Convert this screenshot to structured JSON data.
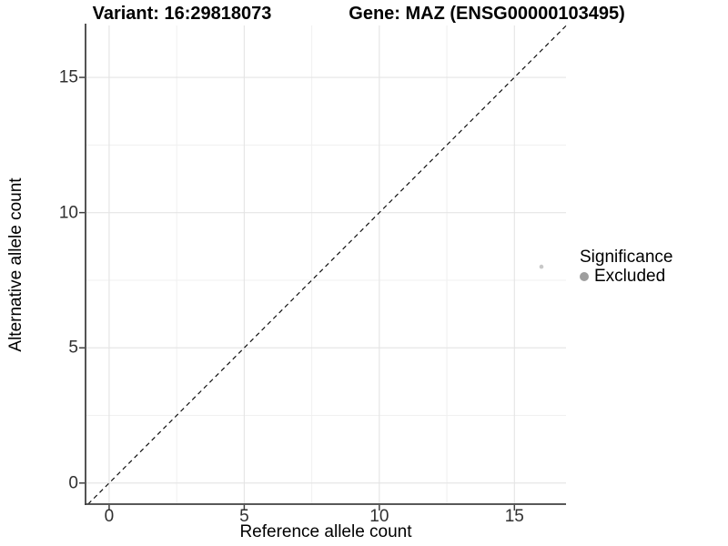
{
  "titles": {
    "variant": "Variant: 16:29818073",
    "gene": "Gene: MAZ (ENSG00000103495)"
  },
  "chart_data": {
    "type": "scatter",
    "title": "Variant: 16:29818073    Gene: MAZ (ENSG00000103495)",
    "xlabel": "Reference allele count",
    "ylabel": "Alternative allele count",
    "xlim": [
      -0.84,
      16.91
    ],
    "ylim": [
      -0.78,
      16.92
    ],
    "x_ticks": [
      0,
      5,
      10,
      15
    ],
    "y_ticks": [
      0,
      5,
      10,
      15
    ],
    "x_minor_ticks": [
      2.5,
      7.5,
      12.5
    ],
    "y_minor_ticks": [
      2.5,
      7.5,
      12.5
    ],
    "grid": "major and minor, light grey on white panel",
    "points": [
      {
        "x": 16,
        "y": 8,
        "series": "Excluded"
      }
    ],
    "identity_line": {
      "slope": 1,
      "intercept": 0,
      "linetype": "dashed",
      "color": "#111111"
    },
    "legend": {
      "title": "Significance",
      "position": "right",
      "entries": [
        {
          "label": "Excluded",
          "color": "#9e9e9e",
          "marker": "circle"
        }
      ]
    },
    "colors": {
      "point": "#c8c8c8",
      "grid_major": "#e4e4e4",
      "grid_minor": "#f0f0f0",
      "axis_line": "#404040",
      "tick_mark": "#404040",
      "tick_text": "#303030",
      "title_text": "#000000"
    }
  }
}
